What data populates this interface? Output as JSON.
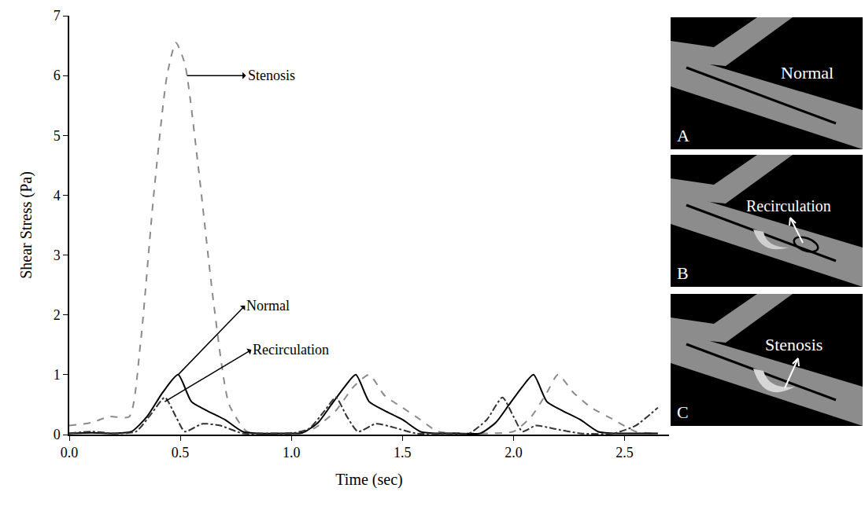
{
  "chart_data": {
    "type": "line",
    "xlabel": "Time (sec)",
    "ylabel": "Shear Stress (Pa)",
    "xlim": [
      0,
      2.7
    ],
    "ylim": [
      0,
      7
    ],
    "xticks": [
      {
        "value": 0,
        "label": "0.0"
      },
      {
        "value": 0.5,
        "label": "0.5"
      },
      {
        "value": 1,
        "label": "1.0"
      },
      {
        "value": 1.5,
        "label": "1.5"
      },
      {
        "value": 2,
        "label": "2.0"
      },
      {
        "value": 2.5,
        "label": "2.5"
      }
    ],
    "yticks": [
      0,
      1,
      2,
      3,
      4,
      5,
      6,
      7
    ],
    "grid": false,
    "series": [
      {
        "color": "#8a8a8a",
        "line_style": "dash",
        "x": [
          0,
          0.1,
          0.18,
          0.27,
          0.32,
          0.38,
          0.44,
          0.48,
          0.52,
          0.58,
          0.65,
          0.72,
          0.8,
          0.9,
          1.0,
          1.1,
          1.2,
          1.28,
          1.35,
          1.42,
          1.5,
          1.58,
          1.66,
          1.8,
          1.9,
          2.0,
          2.08,
          2.15,
          2.2,
          2.27,
          2.35,
          2.45,
          2.55,
          2.65
        ],
        "values": [
          0.15,
          0.2,
          0.3,
          0.3,
          1.5,
          4.0,
          6.0,
          6.55,
          6.2,
          4.5,
          2.2,
          0.5,
          0.05,
          0.02,
          0.03,
          0.1,
          0.4,
          0.8,
          1.0,
          0.65,
          0.45,
          0.25,
          0.05,
          0.02,
          0.02,
          0.05,
          0.3,
          0.7,
          1.0,
          0.7,
          0.45,
          0.25,
          0.05,
          0.02
        ]
      },
      {
        "color": "#000000",
        "line_style": "solid",
        "x": [
          0,
          0.1,
          0.2,
          0.28,
          0.35,
          0.42,
          0.49,
          0.55,
          0.62,
          0.7,
          0.78,
          0.85,
          0.95,
          1.05,
          1.12,
          1.18,
          1.24,
          1.29,
          1.35,
          1.42,
          1.5,
          1.58,
          1.65,
          1.75,
          1.85,
          1.92,
          1.98,
          2.04,
          2.09,
          2.15,
          2.22,
          2.3,
          2.38,
          2.45,
          2.55,
          2.65
        ],
        "values": [
          0.02,
          0.03,
          0.02,
          0.05,
          0.3,
          0.7,
          1.0,
          0.55,
          0.4,
          0.25,
          0.05,
          0.02,
          0.02,
          0.03,
          0.2,
          0.5,
          0.8,
          1.0,
          0.55,
          0.4,
          0.25,
          0.05,
          0.02,
          0.02,
          0.02,
          0.2,
          0.5,
          0.8,
          1.0,
          0.55,
          0.4,
          0.25,
          0.05,
          0.02,
          0.02,
          0.02
        ]
      },
      {
        "color": "#333333",
        "line_style": "dashdot",
        "x": [
          0,
          0.1,
          0.2,
          0.3,
          0.37,
          0.43,
          0.48,
          0.52,
          0.6,
          0.68,
          0.78,
          0.9,
          1.0,
          1.08,
          1.15,
          1.2,
          1.25,
          1.3,
          1.38,
          1.46,
          1.56,
          1.7,
          1.8,
          1.88,
          1.95,
          2.0,
          2.04,
          2.1,
          2.18,
          2.3,
          2.45,
          2.55,
          2.65
        ],
        "values": [
          0.02,
          0.05,
          0.02,
          0.05,
          0.35,
          0.62,
          0.3,
          0.05,
          0.18,
          0.15,
          0.02,
          0.02,
          0.02,
          0.1,
          0.4,
          0.62,
          0.3,
          0.05,
          0.18,
          0.12,
          0.02,
          0.02,
          0.02,
          0.25,
          0.62,
          0.3,
          0.05,
          0.15,
          0.1,
          0.02,
          0.02,
          0.15,
          0.45
        ]
      }
    ],
    "annotations": [
      {
        "text": "Stenosis",
        "x": 0.53,
        "y": 6.0
      },
      {
        "text": "Normal",
        "x": 0.49,
        "y": 1.0
      },
      {
        "text": "Recirculation",
        "x": 0.43,
        "y": 0.55
      }
    ]
  },
  "panels": [
    {
      "letter": "A",
      "label": "Normal"
    },
    {
      "letter": "B",
      "label": "Recirculation"
    },
    {
      "letter": "C",
      "label": "Stenosis"
    }
  ]
}
